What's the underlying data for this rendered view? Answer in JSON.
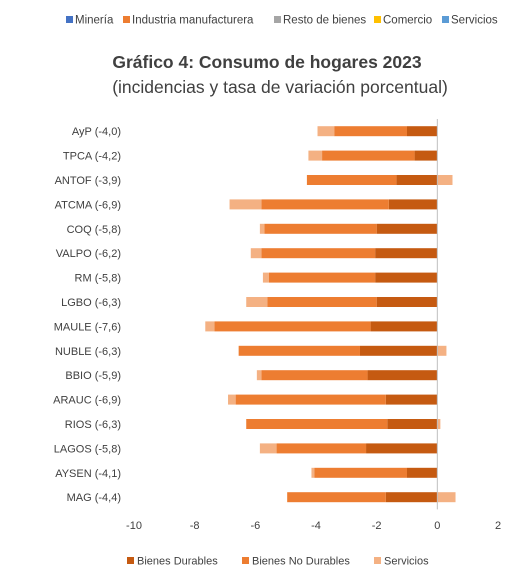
{
  "top_legend": {
    "items": [
      {
        "label": "Minería",
        "color": "#4472C4"
      },
      {
        "label": "Industria manufacturera",
        "color": "#ED7D31"
      },
      {
        "label": "Resto de bienes",
        "color": "#A5A5A5"
      },
      {
        "label": "Comercio",
        "color": "#FFC000"
      },
      {
        "label": "Servicios",
        "color": "#5B9BD5"
      }
    ]
  },
  "chart_data": {
    "type": "bar",
    "orientation": "horizontal",
    "stacked": true,
    "title": "Gráfico 4: Consumo de hogares 2023",
    "subtitle": "(incidencias y tasa de variación porcentual)",
    "categories": [
      "AyP (-4,0)",
      "TPCA (-4,2)",
      "ANTOF (-3,9)",
      "ATCMA (-6,9)",
      "COQ (-5,8)",
      "VALPO (-6,2)",
      "RM (-5,8)",
      "LGBO (-6,3)",
      "MAULE (-7,6)",
      "NUBLE (-6,3)",
      "BBIO (-5,9)",
      "ARAUC (-6,9)",
      "RIOS (-6,3)",
      "LAGOS (-5,8)",
      "AYSEN (-4,1)",
      "MAG (-4,4)"
    ],
    "series": [
      {
        "name": "Bienes Durables",
        "color": "#C55A11",
        "values": [
          -1.0,
          -0.75,
          -1.35,
          -1.6,
          -2.0,
          -2.05,
          -2.05,
          -2.0,
          -2.2,
          -2.55,
          -2.3,
          -1.7,
          -1.65,
          -2.35,
          -1.0,
          -1.7
        ]
      },
      {
        "name": "Bienes No Durables",
        "color": "#ED7D31",
        "values": [
          -2.4,
          -3.05,
          -2.95,
          -4.2,
          -3.7,
          -3.75,
          -3.5,
          -3.6,
          -5.15,
          -4.0,
          -3.5,
          -4.95,
          -4.65,
          -2.95,
          -3.05,
          -3.25
        ]
      },
      {
        "name": "Servicios",
        "color": "#F4B183",
        "values": [
          -0.55,
          -0.45,
          0.5,
          -1.05,
          -0.15,
          -0.35,
          -0.2,
          -0.7,
          -0.3,
          0.3,
          -0.15,
          -0.25,
          0.1,
          -0.55,
          -0.1,
          0.6
        ]
      }
    ],
    "xlim": [
      -10,
      2
    ],
    "xticks": [
      -10,
      -8,
      -6,
      -4,
      -2,
      0,
      2
    ],
    "xticklabels": [
      "-10",
      "-8",
      "-6",
      "-4",
      "-2",
      "0",
      "2"
    ],
    "legend": "bottom",
    "grid": false
  }
}
